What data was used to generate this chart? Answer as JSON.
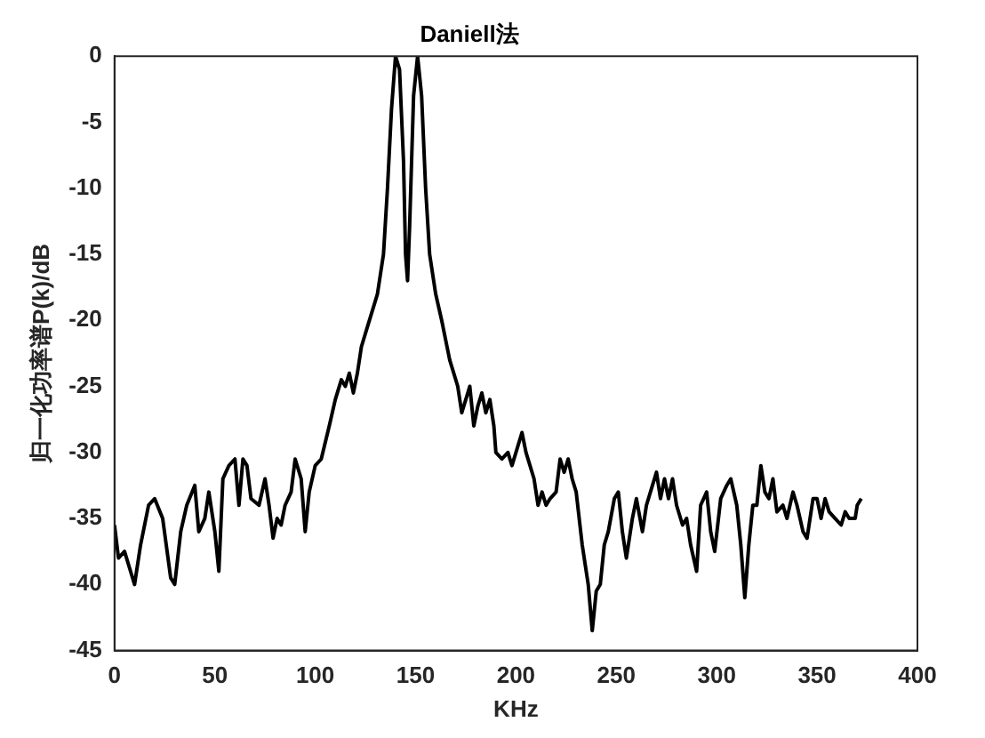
{
  "chart_data": {
    "type": "line",
    "title": "Daniell法",
    "xlabel": "KHz",
    "ylabel": "归一化功率谱P(k)/dB",
    "xlim": [
      0,
      400
    ],
    "xticks": [
      0,
      50,
      100,
      150,
      200,
      250,
      300,
      350,
      400
    ],
    "ylim": [
      -45,
      0
    ],
    "yticks": [
      -45,
      -40,
      -35,
      -30,
      -25,
      -20,
      -15,
      -10,
      -5,
      0
    ],
    "grid": false,
    "legend": false,
    "marker": "none",
    "line_style": "solid",
    "series": [
      {
        "color": "#000000",
        "x": [
          0,
          2,
          5,
          8,
          10,
          13,
          17,
          20,
          24,
          28,
          30,
          33,
          36,
          40,
          42,
          45,
          47,
          50,
          52,
          54,
          57,
          60,
          62,
          64,
          66,
          68,
          72,
          75,
          77,
          79,
          81,
          83,
          85,
          88,
          90,
          93,
          95,
          97,
          100,
          103,
          107,
          110,
          113,
          115,
          117,
          119,
          121,
          123,
          126,
          128,
          131,
          134,
          136,
          138,
          140,
          142,
          144,
          145,
          146,
          147,
          149,
          151,
          153,
          155,
          157,
          160,
          163,
          165,
          167,
          169,
          171,
          173,
          175,
          177,
          179,
          181,
          183,
          185,
          187,
          189,
          190,
          193,
          196,
          198,
          200,
          203,
          205,
          207,
          209,
          211,
          213,
          215,
          217,
          220,
          222,
          224,
          226,
          228,
          230,
          233,
          236,
          238,
          240,
          242,
          244,
          246,
          249,
          251,
          253,
          255,
          258,
          260,
          263,
          265,
          268,
          270,
          272,
          274,
          276,
          278,
          280,
          283,
          285,
          287,
          290,
          292,
          295,
          297,
          299,
          302,
          305,
          307,
          310,
          312,
          314,
          316,
          318,
          320,
          322,
          324,
          326,
          328,
          330,
          333,
          335,
          338,
          340,
          343,
          345,
          348,
          350,
          352,
          354,
          356,
          359,
          362,
          364,
          366,
          369,
          370,
          372
        ],
        "values": [
          -35.5,
          -38,
          -37.5,
          -39,
          -40,
          -37,
          -34,
          -33.5,
          -35,
          -39.5,
          -40,
          -36,
          -34,
          -32.5,
          -36,
          -35,
          -33,
          -36,
          -39,
          -32,
          -31,
          -30.5,
          -34,
          -30.5,
          -31,
          -33.5,
          -34,
          -32,
          -34,
          -36.5,
          -35,
          -35.5,
          -34,
          -33,
          -30.5,
          -32,
          -36,
          -33,
          -31,
          -30.5,
          -28,
          -26,
          -24.5,
          -25,
          -24,
          -25.5,
          -24,
          -22,
          -20.5,
          -19.5,
          -18,
          -15,
          -10,
          -4,
          0,
          -1,
          -8,
          -15,
          -17,
          -13,
          -3,
          0,
          -3,
          -10,
          -15,
          -18,
          -20,
          -21.5,
          -23,
          -24,
          -25,
          -27,
          -26,
          -25,
          -28,
          -26.5,
          -25.5,
          -27,
          -26,
          -28,
          -30,
          -30.5,
          -30,
          -31,
          -30,
          -28.5,
          -30,
          -31,
          -32,
          -34,
          -33,
          -34,
          -33.5,
          -33,
          -30.5,
          -31.5,
          -30.5,
          -32,
          -33,
          -37,
          -40,
          -43.5,
          -40.5,
          -40,
          -37,
          -36,
          -33.5,
          -33,
          -36,
          -38,
          -35,
          -33.5,
          -36,
          -34,
          -32.5,
          -31.5,
          -33.5,
          -32,
          -33.5,
          -32,
          -34,
          -35.5,
          -35,
          -37,
          -39,
          -34,
          -33,
          -36,
          -37.5,
          -33.5,
          -32.5,
          -32,
          -34,
          -37,
          -41,
          -37,
          -34,
          -34,
          -31,
          -33,
          -33.5,
          -32,
          -34.5,
          -34,
          -35,
          -33,
          -34,
          -36,
          -36.5,
          -33.5,
          -33.5,
          -35,
          -33.5,
          -34.5,
          -35,
          -35.5,
          -34.5,
          -35,
          -35,
          -34,
          -33.5
        ]
      }
    ]
  }
}
